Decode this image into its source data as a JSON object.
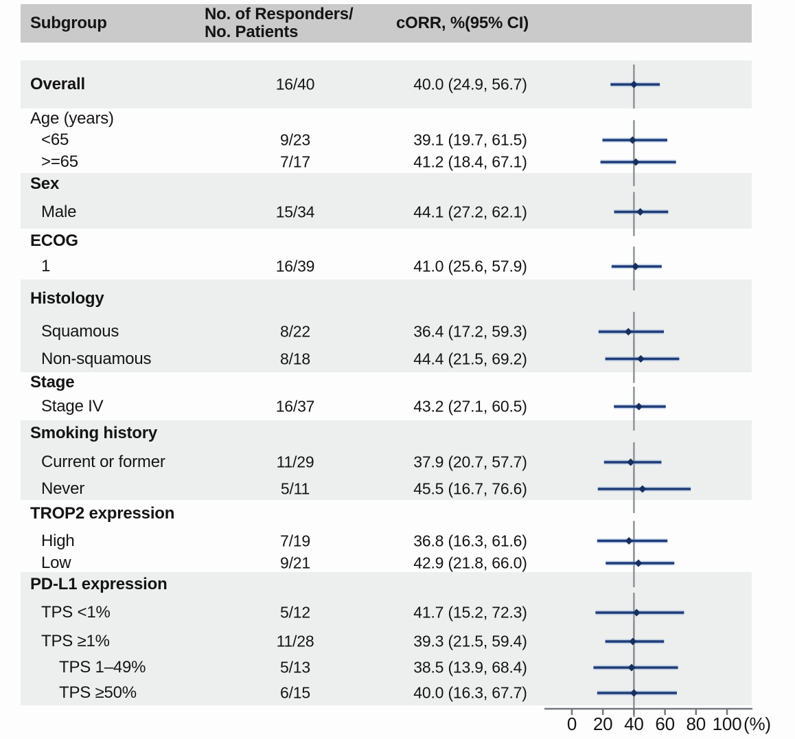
{
  "header": {
    "subgroup": "Subgroup",
    "responders_line1": "No. of Responders/",
    "responders_line2": "No. Patients",
    "corr": "cORR, %(95% CI)"
  },
  "colors": {
    "header_bg": "#c9cac9",
    "shaded_band": "#edefee",
    "ci_line": "#1e3c78",
    "ci_halo": "#8caad5",
    "marker": "#16305f",
    "reference_line": "#8b8f93",
    "axis": "#74787c",
    "text": "#141414"
  },
  "chart_data": {
    "type": "scatter",
    "variant": "forest_plot",
    "title": "",
    "xlabel": "(%)",
    "xlim": [
      0,
      100
    ],
    "x_ticks": [
      0,
      20,
      40,
      60,
      80,
      100
    ],
    "x_unit_label": "(%)",
    "reference_line_x": 40,
    "grid": false,
    "groups": [
      {
        "header": null,
        "shaded": true,
        "rows": [
          {
            "label": "Overall",
            "bold": true,
            "indent": 0,
            "n": "16/40",
            "corr": "40.0 (24.9, 56.7)",
            "est": 40.0,
            "lo": 24.9,
            "hi": 56.7
          }
        ]
      },
      {
        "header": {
          "label": "Age (years)",
          "bold": false
        },
        "shaded": false,
        "rows": [
          {
            "label": "<65",
            "bold": false,
            "indent": 1,
            "n": "9/23",
            "corr": "39.1 (19.7, 61.5)",
            "est": 39.1,
            "lo": 19.7,
            "hi": 61.5
          },
          {
            "label": ">=65",
            "bold": false,
            "indent": 1,
            "n": "7/17",
            "corr": "41.2 (18.4, 67.1)",
            "est": 41.2,
            "lo": 18.4,
            "hi": 67.1
          }
        ]
      },
      {
        "header": {
          "label": "Sex",
          "bold": true
        },
        "shaded": true,
        "rows": [
          {
            "label": "Male",
            "bold": false,
            "indent": 1,
            "n": "15/34",
            "corr": "44.1 (27.2, 62.1)",
            "est": 44.1,
            "lo": 27.2,
            "hi": 62.1
          }
        ]
      },
      {
        "header": {
          "label": "ECOG",
          "bold": true
        },
        "shaded": false,
        "rows": [
          {
            "label": "1",
            "bold": false,
            "indent": 1,
            "n": "16/39",
            "corr": "41.0 (25.6, 57.9)",
            "est": 41.0,
            "lo": 25.6,
            "hi": 57.9
          }
        ]
      },
      {
        "header": {
          "label": "Histology",
          "bold": true
        },
        "shaded": true,
        "rows": [
          {
            "label": "Squamous",
            "bold": false,
            "indent": 1,
            "n": "8/22",
            "corr": "36.4 (17.2, 59.3)",
            "est": 36.4,
            "lo": 17.2,
            "hi": 59.3
          },
          {
            "label": "Non-squamous",
            "bold": false,
            "indent": 1,
            "n": "8/18",
            "corr": "44.4 (21.5, 69.2)",
            "est": 44.4,
            "lo": 21.5,
            "hi": 69.2
          }
        ]
      },
      {
        "header": {
          "label": "Stage",
          "bold": true
        },
        "shaded": false,
        "rows": [
          {
            "label": "Stage IV",
            "bold": false,
            "indent": 1,
            "n": "16/37",
            "corr": "43.2 (27.1, 60.5)",
            "est": 43.2,
            "lo": 27.1,
            "hi": 60.5
          }
        ]
      },
      {
        "header": {
          "label": "Smoking history",
          "bold": true
        },
        "shaded": true,
        "rows": [
          {
            "label": "Current or former",
            "bold": false,
            "indent": 1,
            "n": "11/29",
            "corr": "37.9 (20.7, 57.7)",
            "est": 37.9,
            "lo": 20.7,
            "hi": 57.7
          },
          {
            "label": "Never",
            "bold": false,
            "indent": 1,
            "n": "5/11",
            "corr": "45.5 (16.7, 76.6)",
            "est": 45.5,
            "lo": 16.7,
            "hi": 76.6
          }
        ]
      },
      {
        "header": {
          "label": "TROP2 expression",
          "bold": true
        },
        "shaded": false,
        "rows": [
          {
            "label": "High",
            "bold": false,
            "indent": 1,
            "n": "7/19",
            "corr": "36.8 (16.3, 61.6)",
            "est": 36.8,
            "lo": 16.3,
            "hi": 61.6
          },
          {
            "label": "Low",
            "bold": false,
            "indent": 1,
            "n": "9/21",
            "corr": "42.9 (21.8, 66.0)",
            "est": 42.9,
            "lo": 21.8,
            "hi": 66.0
          }
        ]
      },
      {
        "header": {
          "label": "PD-L1 expression",
          "bold": true
        },
        "shaded": true,
        "rows": [
          {
            "label": "TPS <1%",
            "bold": false,
            "indent": 1,
            "n": "5/12",
            "corr": "41.7 (15.2, 72.3)",
            "est": 41.7,
            "lo": 15.2,
            "hi": 72.3
          },
          {
            "label": "TPS ≥1%",
            "bold": false,
            "indent": 1,
            "n": "11/28",
            "corr": "39.3 (21.5, 59.4)",
            "est": 39.3,
            "lo": 21.5,
            "hi": 59.4
          },
          {
            "label": "TPS 1–49%",
            "bold": false,
            "indent": 2,
            "n": "5/13",
            "corr": "38.5 (13.9, 68.4)",
            "est": 38.5,
            "lo": 13.9,
            "hi": 68.4
          },
          {
            "label": "TPS ≥50%",
            "bold": false,
            "indent": 2,
            "n": "6/15",
            "corr": "40.0 (16.3, 67.7)",
            "est": 40.0,
            "lo": 16.3,
            "hi": 67.7
          }
        ]
      }
    ]
  }
}
